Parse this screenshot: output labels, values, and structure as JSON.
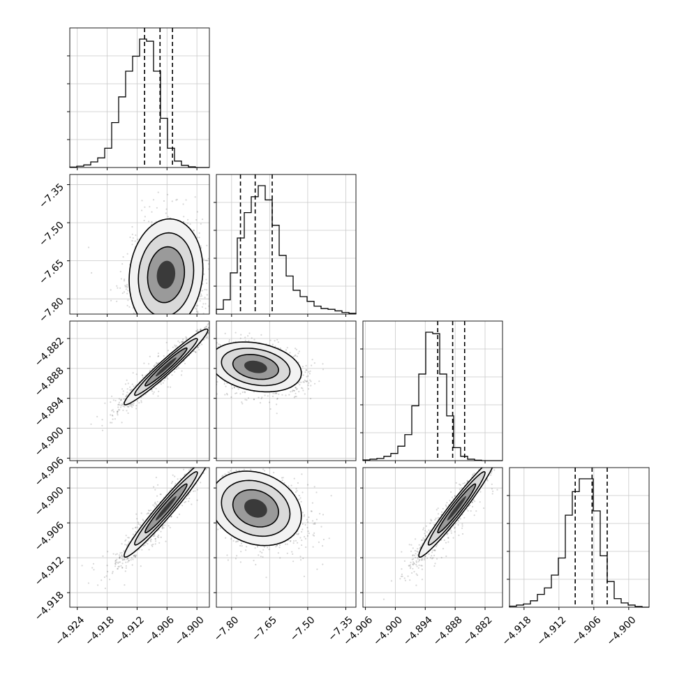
{
  "chart_data": {
    "type": "corner",
    "parameters": [
      {
        "range": [
          -4.9255,
          -4.8975
        ],
        "ticks": [
          -4.924,
          -4.918,
          -4.912,
          -4.906,
          -4.9
        ],
        "tick_labels": [
          "−4.924",
          "−4.918",
          "−4.912",
          "−4.906",
          "−4.900"
        ],
        "quantiles": [
          -4.9105,
          -4.9074,
          -4.9049
        ]
      },
      {
        "range": [
          -7.86,
          -7.31
        ],
        "ticks": [
          -7.8,
          -7.65,
          -7.5,
          -7.35
        ],
        "tick_labels": [
          "−7.80",
          "−7.65",
          "−7.50",
          "−7.35"
        ],
        "quantiles": [
          -7.765,
          -7.707,
          -7.64
        ]
      },
      {
        "range": [
          -4.9065,
          -4.8785
        ],
        "ticks": [
          -4.906,
          -4.9,
          -4.894,
          -4.888,
          -4.882
        ],
        "tick_labels": [
          "−4.906",
          "−4.900",
          "−4.894",
          "−4.888",
          "−4.882"
        ],
        "quantiles": [
          -4.8915,
          -4.8885,
          -4.8861
        ]
      },
      {
        "range": [
          -4.9205,
          -4.8965
        ],
        "ticks": [
          -4.918,
          -4.912,
          -4.906,
          -4.9
        ],
        "tick_labels": [
          "−4.918",
          "−4.912",
          "−4.906",
          "−4.900"
        ],
        "quantiles": [
          -4.9092,
          -4.9063,
          -4.9037
        ]
      }
    ],
    "histograms": [
      [
        0.2,
        0.6,
        1.2,
        2.6,
        4.5,
        9,
        21,
        33,
        45,
        52,
        60,
        59,
        45,
        23,
        9,
        3,
        1,
        0.3,
        0,
        0
      ],
      [
        3,
        9,
        26,
        48,
        64,
        74,
        81,
        72,
        56,
        37,
        24,
        15,
        11,
        8,
        5,
        3.5,
        3,
        2,
        1,
        0.5
      ],
      [
        0.5,
        1,
        1.5,
        3,
        5,
        10,
        18,
        38,
        60,
        89,
        88,
        60,
        31,
        9,
        3,
        1,
        0.3,
        0,
        0,
        0
      ],
      [
        0.5,
        1,
        1.5,
        3,
        6,
        9,
        15,
        23,
        43,
        54,
        60,
        60,
        45,
        24,
        12,
        4,
        2,
        1,
        0.3,
        0
      ]
    ],
    "pairs": [
      {
        "x": 0,
        "y": 1,
        "cx": -4.9062,
        "cy": -7.705,
        "sx": 0.0037,
        "sy": 0.11,
        "rho": 0.1,
        "tail": [
          0.006,
          -0.1
        ]
      },
      {
        "x": 0,
        "y": 2,
        "cx": -4.9062,
        "cy": -4.8877,
        "sx": 0.0042,
        "sy": 0.0038,
        "rho": 0.97,
        "tail": [
          -0.006,
          -0.005
        ]
      },
      {
        "x": 1,
        "y": 2,
        "cx": -7.705,
        "cy": -4.8877,
        "sx": 0.09,
        "sy": 0.0025,
        "rho": -0.25,
        "tail": [
          0.12,
          -0.003
        ]
      },
      {
        "x": 0,
        "y": 3,
        "cx": -4.9062,
        "cy": -4.9035,
        "sx": 0.0042,
        "sy": 0.0042,
        "rho": 0.97,
        "tail": [
          -0.006,
          -0.006
        ]
      },
      {
        "x": 1,
        "y": 3,
        "cx": -7.705,
        "cy": -4.9035,
        "sx": 0.09,
        "sy": 0.0032,
        "rho": -0.2,
        "tail": [
          0.12,
          -0.004
        ]
      },
      {
        "x": 2,
        "y": 3,
        "cx": -4.8877,
        "cy": -4.9035,
        "sx": 0.0038,
        "sy": 0.0042,
        "rho": 0.97,
        "tail": [
          -0.005,
          -0.006
        ]
      }
    ],
    "grid": true,
    "contour_levels": 3
  }
}
